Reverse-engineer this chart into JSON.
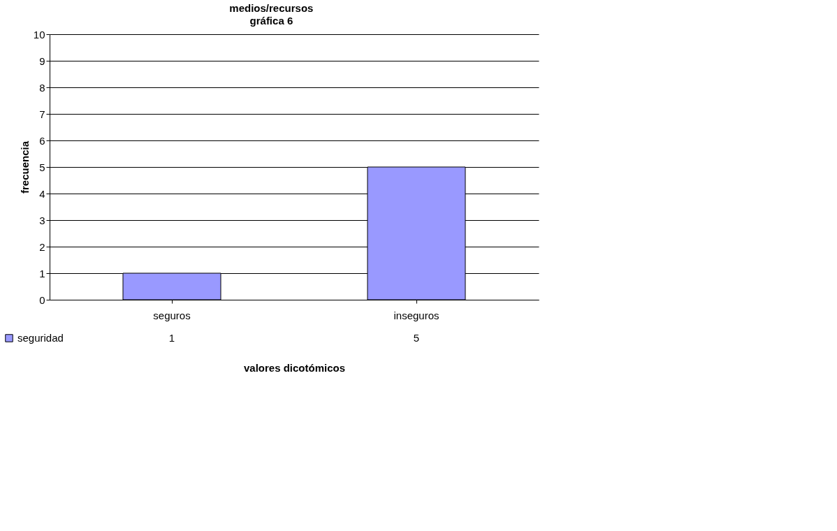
{
  "chart_data": {
    "type": "bar",
    "title": "medios/recursos",
    "subtitle": "gráfica 6",
    "xlabel": "valores dicotómicos",
    "ylabel": "frecuencia",
    "categories": [
      "seguros",
      "inseguros"
    ],
    "series": [
      {
        "name": "seguridad",
        "color": "#9999ff",
        "values": [
          1,
          5
        ]
      }
    ],
    "ylim": [
      0,
      10
    ],
    "yticks": [
      0,
      1,
      2,
      3,
      4,
      5,
      6,
      7,
      8,
      9,
      10
    ],
    "grid": "y",
    "legend": "bottom left",
    "data_labels": true
  }
}
